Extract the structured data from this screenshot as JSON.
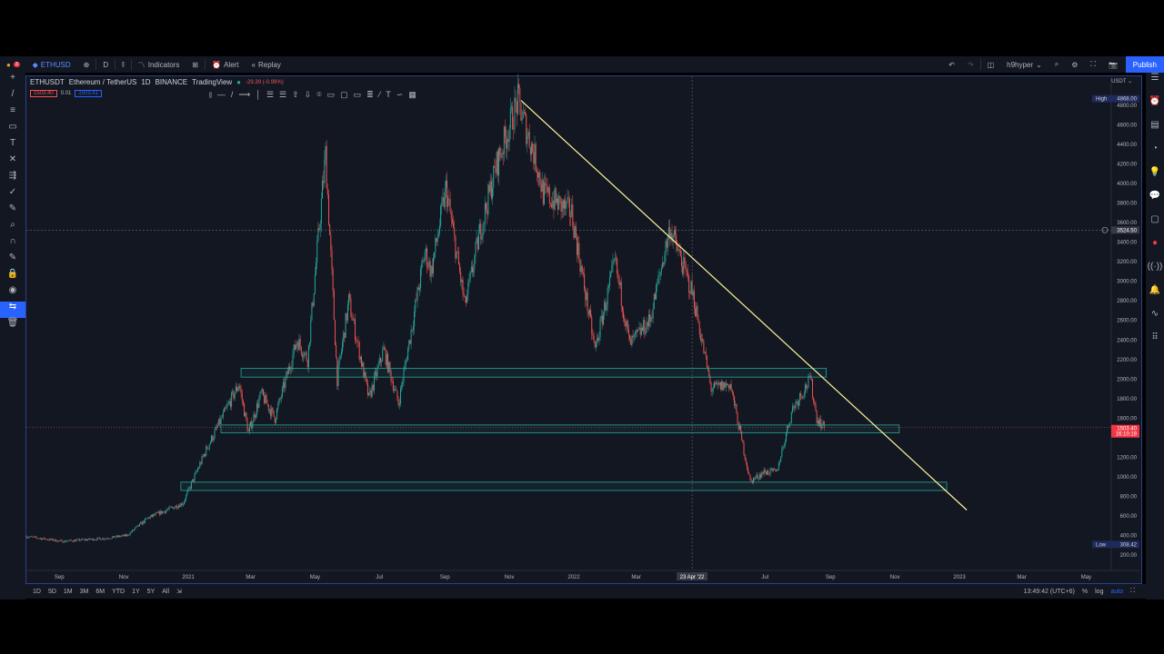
{
  "topbar": {
    "symbol": "ETHUSD",
    "interval": "D",
    "indicators": "Indicators",
    "alert": "Alert",
    "replay": "Replay",
    "user": "h9hyper",
    "publish": "Publish",
    "notif_count": "3"
  },
  "legend": {
    "symbol": "ETHUSDT",
    "name": "Ethereum / TetherUS",
    "interval": "1D",
    "exchange": "BINANCE",
    "source": "TradingView",
    "change": "-29.39 (-0.99%)",
    "bid": "1503.40",
    "spread": "0.01",
    "ask": "1503.41"
  },
  "price_axis": {
    "currency": "USDT",
    "high_label": "High",
    "high": "4868.00",
    "low_label": "Low",
    "low": "308.42",
    "current_price": "1503.40",
    "countdown": "16:10:19",
    "crosshair_price": "3524.50",
    "ticks": [
      "4800.00",
      "4600.00",
      "4400.00",
      "4200.00",
      "4000.00",
      "3800.00",
      "3600.00",
      "3400.00",
      "3200.00",
      "3000.00",
      "2800.00",
      "2600.00",
      "2400.00",
      "2200.00",
      "2000.00",
      "1800.00",
      "1600.00",
      "1200.00",
      "1000.00",
      "800.00",
      "600.00",
      "400.00",
      "200.00"
    ]
  },
  "time_axis": {
    "ticks": [
      [
        "Sep",
        "2020-09-01"
      ],
      [
        "Nov",
        "2020-11-01"
      ],
      [
        "2021",
        "2021-01-01"
      ],
      [
        "Mar",
        "2021-03-01"
      ],
      [
        "May",
        "2021-05-01"
      ],
      [
        "Jul",
        "2021-07-01"
      ],
      [
        "Sep",
        "2021-09-01"
      ],
      [
        "Nov",
        "2021-11-01"
      ],
      [
        "2022",
        "2022-01-01"
      ],
      [
        "Mar",
        "2022-03-01"
      ],
      [
        "Jul",
        "2022-07-01"
      ],
      [
        "Sep",
        "2022-09-01"
      ],
      [
        "Nov",
        "2022-11-01"
      ],
      [
        "2023",
        "2023-01-01"
      ],
      [
        "Mar",
        "2023-03-01"
      ],
      [
        "May",
        "2023-05-01"
      ]
    ],
    "crosshair_date": "23 Apr '22"
  },
  "bottombar": {
    "ranges": [
      "1D",
      "5D",
      "1M",
      "3M",
      "6M",
      "YTD",
      "1Y",
      "5Y",
      "All"
    ],
    "clock": "13:49:42 (UTC+6)",
    "percent": "%",
    "log": "log",
    "auto": "auto"
  },
  "colors": {
    "up": "#26a69a",
    "down": "#ef5350",
    "accent": "#2962ff",
    "zone": "#26a69a",
    "trendline": "#fff59d"
  },
  "chart_data": {
    "type": "candlestick",
    "symbol": "ETHUSDT",
    "ylim": [
      100,
      5000
    ],
    "price_path": [
      [
        "2020-08-01",
        390
      ],
      [
        "2020-09-05",
        340
      ],
      [
        "2020-10-15",
        370
      ],
      [
        "2020-11-05",
        400
      ],
      [
        "2020-11-25",
        580
      ],
      [
        "2020-12-28",
        730
      ],
      [
        "2021-01-20",
        1300
      ],
      [
        "2021-02-19",
        1950
      ],
      [
        "2021-02-28",
        1450
      ],
      [
        "2021-03-12",
        1850
      ],
      [
        "2021-03-25",
        1600
      ],
      [
        "2021-04-15",
        2400
      ],
      [
        "2021-04-25",
        2200
      ],
      [
        "2021-05-12",
        4300
      ],
      [
        "2021-05-23",
        2000
      ],
      [
        "2021-06-03",
        2800
      ],
      [
        "2021-06-22",
        1800
      ],
      [
        "2021-07-06",
        2300
      ],
      [
        "2021-07-20",
        1750
      ],
      [
        "2021-08-14",
        3300
      ],
      [
        "2021-08-20",
        3100
      ],
      [
        "2021-09-03",
        3950
      ],
      [
        "2021-09-21",
        2750
      ],
      [
        "2021-10-05",
        3500
      ],
      [
        "2021-10-21",
        4200
      ],
      [
        "2021-11-10",
        4850
      ],
      [
        "2021-11-28",
        4200
      ],
      [
        "2021-12-04",
        3900
      ],
      [
        "2021-12-31",
        3700
      ],
      [
        "2022-01-22",
        2300
      ],
      [
        "2022-02-10",
        3200
      ],
      [
        "2022-02-24",
        2350
      ],
      [
        "2022-03-15",
        2600
      ],
      [
        "2022-04-03",
        3550
      ],
      [
        "2022-04-25",
        2850
      ],
      [
        "2022-05-12",
        1900
      ],
      [
        "2022-05-30",
        1950
      ],
      [
        "2022-06-18",
        950
      ],
      [
        "2022-07-01",
        1050
      ],
      [
        "2022-07-13",
        1050
      ],
      [
        "2022-07-28",
        1700
      ],
      [
        "2022-08-14",
        2000
      ],
      [
        "2022-08-20",
        1600
      ],
      [
        "2022-08-27",
        1503
      ]
    ],
    "zones": [
      {
        "from": "2021-02-20",
        "to": "2022-08-28",
        "low": 2020,
        "high": 2110
      },
      {
        "from": "2021-02-01",
        "to": "2022-11-05",
        "low": 1450,
        "high": 1530
      },
      {
        "from": "2020-12-25",
        "to": "2022-12-20",
        "low": 860,
        "high": 945
      }
    ],
    "trendline": [
      [
        "2021-11-12",
        4850
      ],
      [
        "2023-01-08",
        660
      ]
    ],
    "current_price": 1503.4,
    "crosshair": [
      "2022-04-23",
      3524.5
    ]
  }
}
